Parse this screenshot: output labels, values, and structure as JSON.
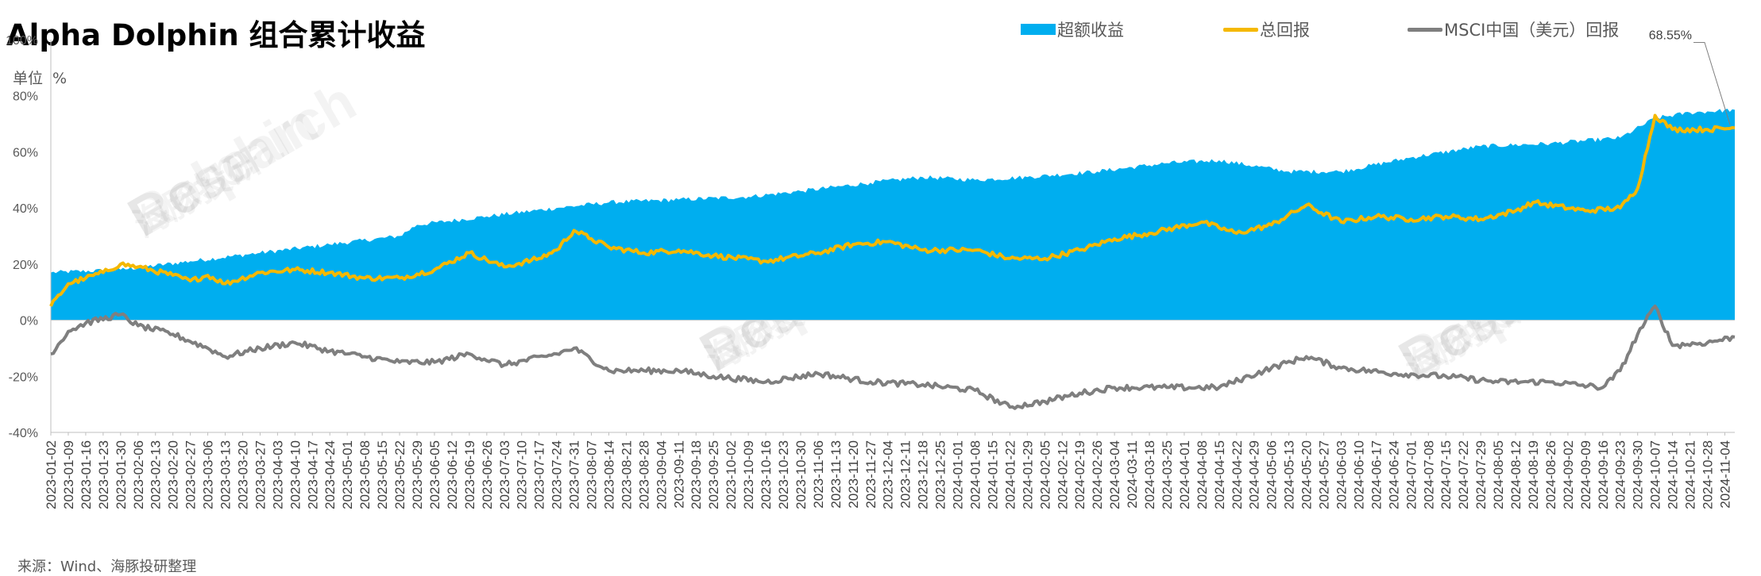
{
  "chart_data": {
    "type": "area+line",
    "title": "Alpha Dolphin 组合累计收益",
    "unit_label": "单位",
    "unit_value": "%",
    "ylim": [
      -40,
      100
    ],
    "yticks": [
      "100%",
      "80%",
      "60%",
      "40%",
      "20%",
      "0%",
      "-20%",
      "-40%"
    ],
    "ytick_values": [
      100,
      80,
      60,
      40,
      20,
      0,
      -20,
      -40
    ],
    "legend_position": "top-right",
    "x_start": "2023-01-02",
    "x_end": "2024-11-08",
    "x_ticks": [
      "2023-01-02",
      "2023-01-09",
      "2023-01-16",
      "2023-01-23",
      "2023-01-30",
      "2023-02-06",
      "2023-02-13",
      "2023-02-20",
      "2023-02-27",
      "2023-03-06",
      "2023-03-13",
      "2023-03-20",
      "2023-03-27",
      "2023-04-03",
      "2023-04-10",
      "2023-04-17",
      "2023-04-24",
      "2023-05-01",
      "2023-05-08",
      "2023-05-15",
      "2023-05-22",
      "2023-05-29",
      "2023-06-05",
      "2023-06-12",
      "2023-06-19",
      "2023-06-26",
      "2023-07-03",
      "2023-07-10",
      "2023-07-17",
      "2023-07-24",
      "2023-07-31",
      "2023-08-07",
      "2023-08-14",
      "2023-08-21",
      "2023-08-28",
      "2023-09-04",
      "2023-09-11",
      "2023-09-18",
      "2023-09-25",
      "2023-10-02",
      "2023-10-09",
      "2023-10-16",
      "2023-10-23",
      "2023-10-30",
      "2023-11-06",
      "2023-11-13",
      "2023-11-20",
      "2023-11-27",
      "2023-12-04",
      "2023-12-11",
      "2023-12-18",
      "2023-12-25",
      "2024-01-01",
      "2024-01-08",
      "2024-01-15",
      "2024-01-22",
      "2024-01-29",
      "2024-02-05",
      "2024-02-12",
      "2024-02-19",
      "2024-02-26",
      "2024-03-04",
      "2024-03-11",
      "2024-03-18",
      "2024-03-25",
      "2024-04-01",
      "2024-04-08",
      "2024-04-15",
      "2024-04-22",
      "2024-04-29",
      "2024-05-06",
      "2024-05-13",
      "2024-05-20",
      "2024-05-27",
      "2024-06-03",
      "2024-06-10",
      "2024-06-17",
      "2024-06-24",
      "2024-07-01",
      "2024-07-08",
      "2024-07-15",
      "2024-07-22",
      "2024-07-29",
      "2024-08-05",
      "2024-08-12",
      "2024-08-19",
      "2024-08-26",
      "2024-09-02",
      "2024-09-09",
      "2024-09-16",
      "2024-09-23",
      "2024-09-30",
      "2024-10-07",
      "2024-10-14",
      "2024-10-21",
      "2024-10-28",
      "2024-11-04"
    ],
    "series": [
      {
        "name": "超额收益",
        "kind": "area",
        "color": "#00aeef",
        "points": [
          [
            "2023-01-02",
            17
          ],
          [
            "2023-01-30",
            18
          ],
          [
            "2023-02-27",
            21
          ],
          [
            "2023-03-27",
            24
          ],
          [
            "2023-04-24",
            27
          ],
          [
            "2023-05-22",
            30
          ],
          [
            "2023-05-29",
            34
          ],
          [
            "2023-06-26",
            37
          ],
          [
            "2023-07-24",
            40
          ],
          [
            "2023-08-14",
            42
          ],
          [
            "2023-09-11",
            43
          ],
          [
            "2023-10-09",
            44
          ],
          [
            "2023-10-30",
            46
          ],
          [
            "2023-11-27",
            49
          ],
          [
            "2023-12-18",
            51
          ],
          [
            "2024-01-08",
            50
          ],
          [
            "2024-01-29",
            51
          ],
          [
            "2024-02-26",
            53
          ],
          [
            "2024-03-25",
            56
          ],
          [
            "2024-04-15",
            57
          ],
          [
            "2024-05-13",
            53
          ],
          [
            "2024-06-03",
            53
          ],
          [
            "2024-07-01",
            58
          ],
          [
            "2024-07-29",
            62
          ],
          [
            "2024-08-26",
            63
          ],
          [
            "2024-09-23",
            65
          ],
          [
            "2024-10-07",
            72
          ],
          [
            "2024-10-21",
            74
          ],
          [
            "2024-11-08",
            75
          ]
        ]
      },
      {
        "name": "总回报",
        "kind": "line",
        "color": "#f5b800",
        "points": [
          [
            "2023-01-02",
            5
          ],
          [
            "2023-01-09",
            13
          ],
          [
            "2023-01-16",
            15
          ],
          [
            "2023-01-23",
            17
          ],
          [
            "2023-01-30",
            20
          ],
          [
            "2023-02-06",
            19
          ],
          [
            "2023-02-20",
            16
          ],
          [
            "2023-02-27",
            14
          ],
          [
            "2023-03-06",
            16
          ],
          [
            "2023-03-13",
            13
          ],
          [
            "2023-03-27",
            17
          ],
          [
            "2023-04-10",
            18
          ],
          [
            "2023-04-24",
            17
          ],
          [
            "2023-05-08",
            15
          ],
          [
            "2023-05-22",
            15
          ],
          [
            "2023-06-05",
            18
          ],
          [
            "2023-06-19",
            24
          ],
          [
            "2023-07-03",
            19
          ],
          [
            "2023-07-17",
            22
          ],
          [
            "2023-07-24",
            25
          ],
          [
            "2023-07-31",
            32
          ],
          [
            "2023-08-07",
            29
          ],
          [
            "2023-08-14",
            26
          ],
          [
            "2023-08-28",
            24
          ],
          [
            "2023-09-11",
            25
          ],
          [
            "2023-09-25",
            23
          ],
          [
            "2023-10-16",
            21
          ],
          [
            "2023-11-06",
            24
          ],
          [
            "2023-11-20",
            27
          ],
          [
            "2023-12-04",
            28
          ],
          [
            "2023-12-18",
            25
          ],
          [
            "2024-01-08",
            25
          ],
          [
            "2024-01-22",
            22
          ],
          [
            "2024-02-05",
            22
          ],
          [
            "2024-02-19",
            25
          ],
          [
            "2024-03-04",
            29
          ],
          [
            "2024-03-18",
            31
          ],
          [
            "2024-04-08",
            35
          ],
          [
            "2024-04-22",
            31
          ],
          [
            "2024-05-06",
            34
          ],
          [
            "2024-05-20",
            41
          ],
          [
            "2024-06-03",
            35
          ],
          [
            "2024-06-17",
            37
          ],
          [
            "2024-07-01",
            36
          ],
          [
            "2024-07-15",
            37
          ],
          [
            "2024-07-29",
            36
          ],
          [
            "2024-08-12",
            39
          ],
          [
            "2024-08-19",
            42
          ],
          [
            "2024-09-09",
            39
          ],
          [
            "2024-09-23",
            40
          ],
          [
            "2024-09-30",
            47
          ],
          [
            "2024-10-07",
            73
          ],
          [
            "2024-10-14",
            68
          ],
          [
            "2024-10-28",
            68
          ],
          [
            "2024-11-08",
            68.55
          ]
        ]
      },
      {
        "name": "MSCI中国（美元）回报",
        "kind": "line",
        "color": "#7f7f7f",
        "points": [
          [
            "2023-01-02",
            -12
          ],
          [
            "2023-01-09",
            -4
          ],
          [
            "2023-01-16",
            -1
          ],
          [
            "2023-01-30",
            2
          ],
          [
            "2023-02-06",
            -2
          ],
          [
            "2023-02-20",
            -5
          ],
          [
            "2023-03-06",
            -10
          ],
          [
            "2023-03-13",
            -13
          ],
          [
            "2023-03-27",
            -10
          ],
          [
            "2023-04-10",
            -8
          ],
          [
            "2023-04-24",
            -11
          ],
          [
            "2023-05-08",
            -13
          ],
          [
            "2023-05-22",
            -15
          ],
          [
            "2023-06-05",
            -15
          ],
          [
            "2023-06-19",
            -12
          ],
          [
            "2023-07-03",
            -16
          ],
          [
            "2023-07-24",
            -12
          ],
          [
            "2023-07-31",
            -10
          ],
          [
            "2023-08-14",
            -18
          ],
          [
            "2023-08-28",
            -18
          ],
          [
            "2023-09-11",
            -18
          ],
          [
            "2023-09-25",
            -20
          ],
          [
            "2023-10-16",
            -22
          ],
          [
            "2023-11-06",
            -19
          ],
          [
            "2023-11-27",
            -22
          ],
          [
            "2023-12-18",
            -23
          ],
          [
            "2024-01-08",
            -25
          ],
          [
            "2024-01-22",
            -31
          ],
          [
            "2024-02-05",
            -29
          ],
          [
            "2024-02-19",
            -26
          ],
          [
            "2024-03-04",
            -24
          ],
          [
            "2024-03-25",
            -24
          ],
          [
            "2024-04-15",
            -24
          ],
          [
            "2024-05-06",
            -17
          ],
          [
            "2024-05-20",
            -13
          ],
          [
            "2024-06-03",
            -17
          ],
          [
            "2024-06-24",
            -19
          ],
          [
            "2024-07-15",
            -20
          ],
          [
            "2024-08-05",
            -22
          ],
          [
            "2024-08-26",
            -22
          ],
          [
            "2024-09-16",
            -24
          ],
          [
            "2024-09-23",
            -18
          ],
          [
            "2024-09-30",
            -5
          ],
          [
            "2024-10-07",
            5
          ],
          [
            "2024-10-14",
            -9
          ],
          [
            "2024-10-28",
            -8
          ],
          [
            "2024-11-08",
            -6
          ]
        ]
      }
    ],
    "annotation": {
      "label": "68.55%",
      "date": "2024-11-08",
      "value": 68.55
    }
  },
  "source_text": "来源：Wind、海豚投研整理",
  "watermarks": [
    "Research",
    "Dolphin",
    "海豚投研"
  ],
  "colors": {
    "area": "#00aeef",
    "total": "#f5b800",
    "msci": "#7f7f7f",
    "axis_text": "#595959"
  }
}
